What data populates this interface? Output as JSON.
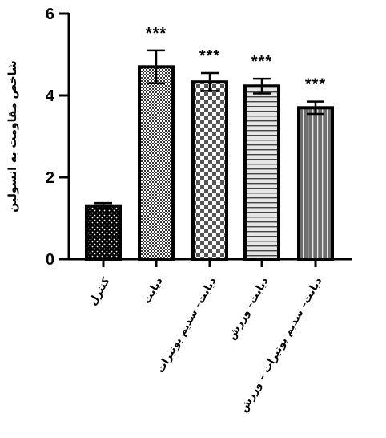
{
  "chart_data": {
    "type": "bar",
    "ylabel": "شاخص مقاومت به انسولین",
    "ylim": [
      0,
      6
    ],
    "yticks": [
      0,
      2,
      4,
      6
    ],
    "grid": false,
    "bars": [
      {
        "category": "کنترل",
        "value": 1.3,
        "error": 0.07,
        "significance": "",
        "pattern": "dots"
      },
      {
        "category": "دیابت",
        "value": 4.7,
        "error": 0.4,
        "significance": "***",
        "pattern": "checker-fine"
      },
      {
        "category": "دیابت– سدیم بوتیرات",
        "value": 4.33,
        "error": 0.22,
        "significance": "***",
        "pattern": "checker-coarse"
      },
      {
        "category": "دیابت– ورزش",
        "value": 4.23,
        "error": 0.18,
        "significance": "***",
        "pattern": "horizontal-lines"
      },
      {
        "category": "دیابت– سدیم بوتیرات – ورزش",
        "value": 3.7,
        "error": 0.15,
        "significance": "***",
        "pattern": "vertical-lines"
      }
    ]
  }
}
